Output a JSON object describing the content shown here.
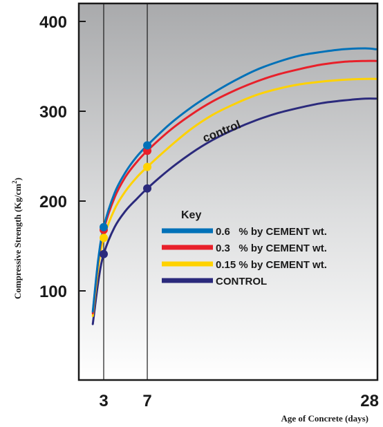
{
  "chart_data": {
    "type": "line",
    "title": "",
    "xlabel": "Age of Concrete (days)",
    "ylabel": "Compressive Strength (Kg/cm",
    "ylabel_sup": "2",
    "ylabel_close": ")",
    "xlim": [
      1.75,
      28
    ],
    "ylim": [
      0,
      415
    ],
    "x_ticks": [
      3,
      7,
      28
    ],
    "y_ticks": [
      100,
      200,
      300,
      400
    ],
    "grid": "vertical lines at 3 and 7 days",
    "legend_title": "Key",
    "legend_position": "center-right",
    "annotation": "control",
    "series": [
      {
        "name": "0.6   % by CEMENT wt.",
        "color": "#0071b8",
        "marker_x": [
          3,
          7
        ],
        "marker_y": [
          171,
          262
        ],
        "x": [
          2,
          2.5,
          3,
          4,
          5,
          6,
          7,
          9,
          11,
          13,
          15,
          17,
          19,
          21,
          23,
          25,
          27,
          28
        ],
        "y": [
          77,
          135,
          171,
          209,
          232,
          249,
          262,
          285,
          304,
          320,
          334,
          346,
          355,
          362,
          366,
          369,
          370,
          369
        ]
      },
      {
        "name": "0.3   % by CEMENT wt.",
        "color": "#e8202a",
        "marker_x": [
          3,
          7
        ],
        "marker_y": [
          168,
          256
        ],
        "x": [
          2,
          2.5,
          3,
          4,
          5,
          6,
          7,
          9,
          11,
          13,
          15,
          17,
          19,
          21,
          23,
          25,
          27,
          28
        ],
        "y": [
          75,
          133,
          168,
          204,
          227,
          243,
          256,
          278,
          296,
          311,
          323,
          333,
          341,
          347,
          352,
          355,
          356,
          356
        ]
      },
      {
        "name": "0.15 % by CEMENT wt.",
        "color": "#ffd200",
        "marker_x": [
          3,
          7
        ],
        "marker_y": [
          159,
          238
        ],
        "x": [
          2,
          2.5,
          3,
          4,
          5,
          6,
          7,
          9,
          11,
          13,
          15,
          17,
          19,
          21,
          23,
          25,
          27,
          28
        ],
        "y": [
          72,
          126,
          159,
          191,
          211,
          226,
          238,
          260,
          280,
          296,
          308,
          318,
          325,
          330,
          333,
          335,
          336,
          336
        ]
      },
      {
        "name": "CONTROL",
        "color": "#2b2a7c",
        "marker_x": [
          3,
          7
        ],
        "marker_y": [
          141,
          214
        ],
        "x": [
          2,
          2.5,
          3,
          4,
          5,
          6,
          7,
          9,
          11,
          13,
          15,
          17,
          19,
          21,
          23,
          25,
          27,
          28
        ],
        "y": [
          63,
          110,
          141,
          171,
          189,
          202,
          214,
          235,
          253,
          268,
          280,
          290,
          298,
          304,
          309,
          312,
          314,
          314
        ]
      }
    ]
  }
}
